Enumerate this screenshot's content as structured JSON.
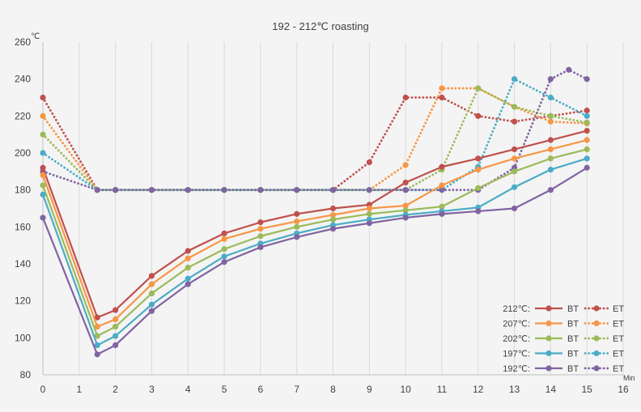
{
  "chart_data": {
    "type": "line",
    "title": "192 - 212℃ roasting",
    "y_unit": "℃",
    "x_unit": "Min",
    "xlim": [
      0,
      16
    ],
    "ylim": [
      80,
      260
    ],
    "x_ticks": [
      0,
      1,
      2,
      3,
      4,
      5,
      6,
      7,
      8,
      9,
      10,
      11,
      12,
      13,
      14,
      15,
      16
    ],
    "y_ticks": [
      80,
      100,
      120,
      140,
      160,
      180,
      200,
      220,
      240,
      260
    ],
    "grid": "vertical",
    "legend_position": "bottom-right",
    "groups": [
      {
        "label": "212℃:",
        "color": "#c0504d",
        "bt": {
          "name": "BT",
          "x": [
            0,
            1.5,
            2,
            3,
            4,
            5,
            6,
            7,
            8,
            9,
            10,
            11,
            12,
            13,
            14,
            15
          ],
          "y": [
            192,
            111,
            115,
            133.5,
            147,
            156.5,
            162.5,
            167,
            170,
            172,
            184,
            192.5,
            197,
            202,
            207,
            212
          ]
        },
        "et": {
          "name": "ET",
          "x": [
            0,
            1.5,
            2,
            3,
            4,
            5,
            6,
            7,
            8,
            9,
            10,
            11,
            12,
            13,
            14,
            15
          ],
          "y": [
            230,
            180,
            180,
            180,
            180,
            180,
            180,
            180,
            180,
            195,
            230,
            230,
            220,
            217,
            220,
            223
          ]
        }
      },
      {
        "label": "207℃:",
        "color": "#f79646",
        "bt": {
          "name": "BT",
          "x": [
            0,
            1.5,
            2,
            3,
            4,
            5,
            6,
            7,
            8,
            9,
            10,
            11,
            12,
            13,
            14,
            15
          ],
          "y": [
            188,
            106,
            110,
            129,
            143,
            153.5,
            159,
            163,
            166.5,
            170,
            171.5,
            182.5,
            191,
            197,
            202,
            207
          ]
        },
        "et": {
          "name": "ET",
          "x": [
            0,
            1.5,
            2,
            3,
            4,
            5,
            6,
            7,
            8,
            9,
            10,
            11,
            12,
            13,
            14,
            15
          ],
          "y": [
            220,
            180,
            180,
            180,
            180,
            180,
            180,
            180,
            180,
            180,
            193.5,
            235,
            235,
            225,
            217,
            216
          ]
        }
      },
      {
        "label": "202℃:",
        "color": "#9bbb59",
        "bt": {
          "name": "BT",
          "x": [
            0,
            1.5,
            2,
            3,
            4,
            5,
            6,
            7,
            8,
            9,
            10,
            11,
            12,
            13,
            14,
            15
          ],
          "y": [
            182.5,
            101,
            106,
            124,
            138,
            148,
            155,
            160,
            164,
            167,
            169,
            171,
            181,
            190,
            197,
            202
          ]
        },
        "et": {
          "name": "ET",
          "x": [
            0,
            1.5,
            2,
            3,
            4,
            5,
            6,
            7,
            8,
            9,
            10,
            11,
            12,
            13,
            14,
            15
          ],
          "y": [
            210,
            180,
            180,
            180,
            180,
            180,
            180,
            180,
            180,
            180,
            180,
            191,
            235,
            225,
            220,
            216.5
          ]
        }
      },
      {
        "label": "197℃:",
        "color": "#4bacc6",
        "bt": {
          "name": "BT",
          "x": [
            0,
            1.5,
            2,
            3,
            4,
            5,
            6,
            7,
            8,
            9,
            10,
            11,
            12,
            13,
            14,
            15
          ],
          "y": [
            177.5,
            96,
            101,
            118,
            132,
            144,
            151,
            156.5,
            161,
            164,
            166.5,
            168.5,
            170.5,
            181.5,
            191,
            197
          ]
        },
        "et": {
          "name": "ET",
          "x": [
            0,
            1.5,
            2,
            3,
            4,
            5,
            6,
            7,
            8,
            9,
            10,
            11,
            12,
            13,
            14,
            15
          ],
          "y": [
            200,
            180,
            180,
            180,
            180,
            180,
            180,
            180,
            180,
            180,
            180,
            180,
            192.5,
            240,
            230,
            220
          ]
        }
      },
      {
        "label": "192℃:",
        "color": "#8064a2",
        "bt": {
          "name": "BT",
          "x": [
            0,
            1.5,
            2,
            3,
            4,
            5,
            6,
            7,
            8,
            9,
            10,
            11,
            12,
            13,
            14,
            15
          ],
          "y": [
            165,
            91,
            96,
            114.5,
            129,
            141,
            149,
            154.5,
            159,
            162,
            165,
            167,
            168.5,
            170,
            180,
            192
          ]
        },
        "et": {
          "name": "ET",
          "x": [
            0,
            1.5,
            2,
            3,
            4,
            5,
            6,
            7,
            8,
            9,
            10,
            11,
            12,
            13,
            14,
            14.5,
            15
          ],
          "y": [
            190,
            180,
            180,
            180,
            180,
            180,
            180,
            180,
            180,
            180,
            180,
            180,
            180,
            192,
            240,
            245,
            240
          ]
        }
      }
    ]
  }
}
